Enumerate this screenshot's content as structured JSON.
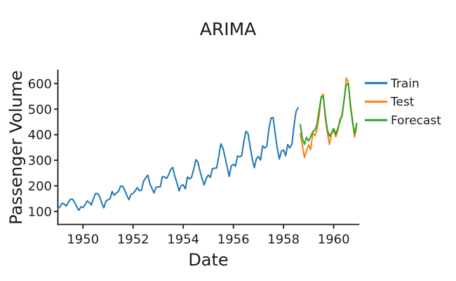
{
  "title": "ARIMA",
  "axes": {
    "x_label": "Date",
    "y_label": "Passenger Volume"
  },
  "legend": {
    "position": "right",
    "items": [
      {
        "label": "Train",
        "color": "#1f77b4"
      },
      {
        "label": "Test",
        "color": "#ff7f0e"
      },
      {
        "label": "Forecast",
        "color": "#2ca02c"
      }
    ]
  },
  "chart_data": {
    "type": "line",
    "title": "ARIMA",
    "xlabel": "Date",
    "ylabel": "Passenger Volume",
    "frequency": "monthly",
    "x_tick_years": [
      1950,
      1952,
      1954,
      1956,
      1958,
      1960
    ],
    "y_ticks": [
      100,
      200,
      300,
      400,
      500,
      600
    ],
    "xlim_years": [
      1949.0,
      1961.0
    ],
    "ylim": [
      49,
      652
    ],
    "grid": false,
    "legend_position": "right",
    "series": [
      {
        "name": "Train",
        "color": "#1f77b4",
        "start_year": 1949,
        "start_month": 1,
        "values": [
          112,
          118,
          132,
          129,
          121,
          135,
          148,
          148,
          136,
          119,
          104,
          118,
          115,
          126,
          141,
          135,
          125,
          149,
          170,
          170,
          158,
          133,
          114,
          140,
          145,
          150,
          178,
          163,
          172,
          178,
          199,
          199,
          184,
          162,
          146,
          166,
          171,
          180,
          193,
          181,
          183,
          218,
          230,
          242,
          209,
          191,
          172,
          194,
          196,
          196,
          236,
          235,
          229,
          243,
          264,
          272,
          237,
          211,
          180,
          201,
          204,
          188,
          235,
          227,
          234,
          264,
          302,
          293,
          259,
          229,
          203,
          229,
          242,
          233,
          267,
          269,
          270,
          315,
          364,
          347,
          312,
          274,
          237,
          278,
          284,
          277,
          317,
          313,
          318,
          374,
          413,
          405,
          355,
          306,
          271,
          306,
          315,
          301,
          356,
          348,
          355,
          422,
          465,
          467,
          404,
          347,
          305,
          336,
          340,
          318,
          362,
          348,
          363,
          435,
          491,
          505
        ]
      },
      {
        "name": "Test",
        "color": "#ff7f0e",
        "start_year": 1958,
        "start_month": 9,
        "values": [
          404,
          359,
          310,
          337,
          360,
          342,
          406,
          396,
          420,
          472,
          548,
          559,
          463,
          407,
          362,
          405,
          417,
          391,
          419,
          461,
          472,
          535,
          622,
          606,
          508,
          461,
          390,
          432
        ]
      },
      {
        "name": "Forecast",
        "color": "#2ca02c",
        "start_year": 1958,
        "start_month": 9,
        "values": [
          440,
          385,
          362,
          390,
          375,
          392,
          412,
          418,
          440,
          495,
          545,
          550,
          475,
          418,
          394,
          408,
          424,
          402,
          425,
          452,
          478,
          540,
          595,
          600,
          520,
          448,
          403,
          445
        ]
      }
    ]
  }
}
